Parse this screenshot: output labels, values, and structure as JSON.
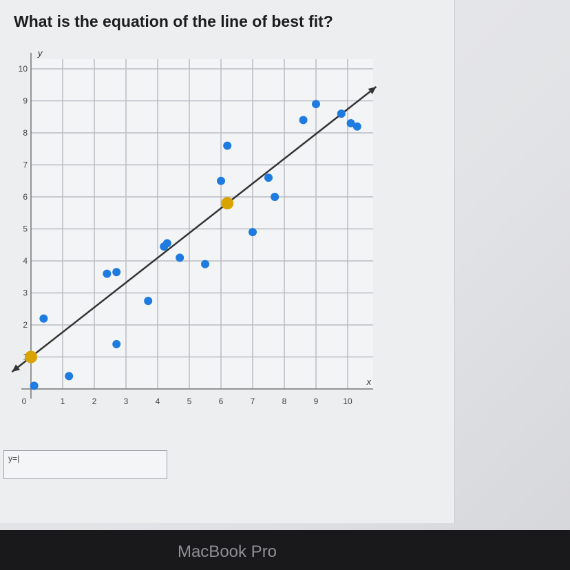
{
  "question": "What is the equation of the line of best fit?",
  "answer_field": {
    "value": "y=|"
  },
  "device_label": "MacBook Pro",
  "colors": {
    "points": "#1e7be0",
    "highlight": "#d9a300",
    "line": "#333333",
    "grid": "#b9bcc2"
  },
  "chart_data": {
    "type": "scatter",
    "xlabel": "x",
    "ylabel": "y",
    "xlim": [
      0,
      10
    ],
    "ylim": [
      0,
      10
    ],
    "x_ticks": [
      "0",
      "1",
      "2",
      "3",
      "4",
      "5",
      "6",
      "7",
      "8",
      "9",
      "10"
    ],
    "y_ticks": [
      "1",
      "2",
      "3",
      "4",
      "5",
      "6",
      "7",
      "8",
      "9",
      "10"
    ],
    "grid": true,
    "points": [
      [
        0.1,
        0.1
      ],
      [
        0.4,
        2.2
      ],
      [
        1.2,
        0.4
      ],
      [
        2.4,
        3.6
      ],
      [
        2.7,
        3.65
      ],
      [
        2.7,
        1.4
      ],
      [
        3.7,
        2.75
      ],
      [
        4.2,
        4.45
      ],
      [
        4.3,
        4.55
      ],
      [
        4.7,
        4.1
      ],
      [
        5.5,
        3.9
      ],
      [
        6.0,
        6.5
      ],
      [
        6.2,
        7.6
      ],
      [
        7.0,
        4.9
      ],
      [
        7.5,
        6.6
      ],
      [
        7.7,
        6.0
      ],
      [
        8.6,
        8.4
      ],
      [
        9.0,
        8.9
      ],
      [
        9.8,
        8.6
      ],
      [
        10.1,
        8.3
      ],
      [
        10.3,
        8.2
      ]
    ],
    "line_points": [
      [
        0,
        1
      ],
      [
        6.2,
        5.8
      ]
    ]
  }
}
